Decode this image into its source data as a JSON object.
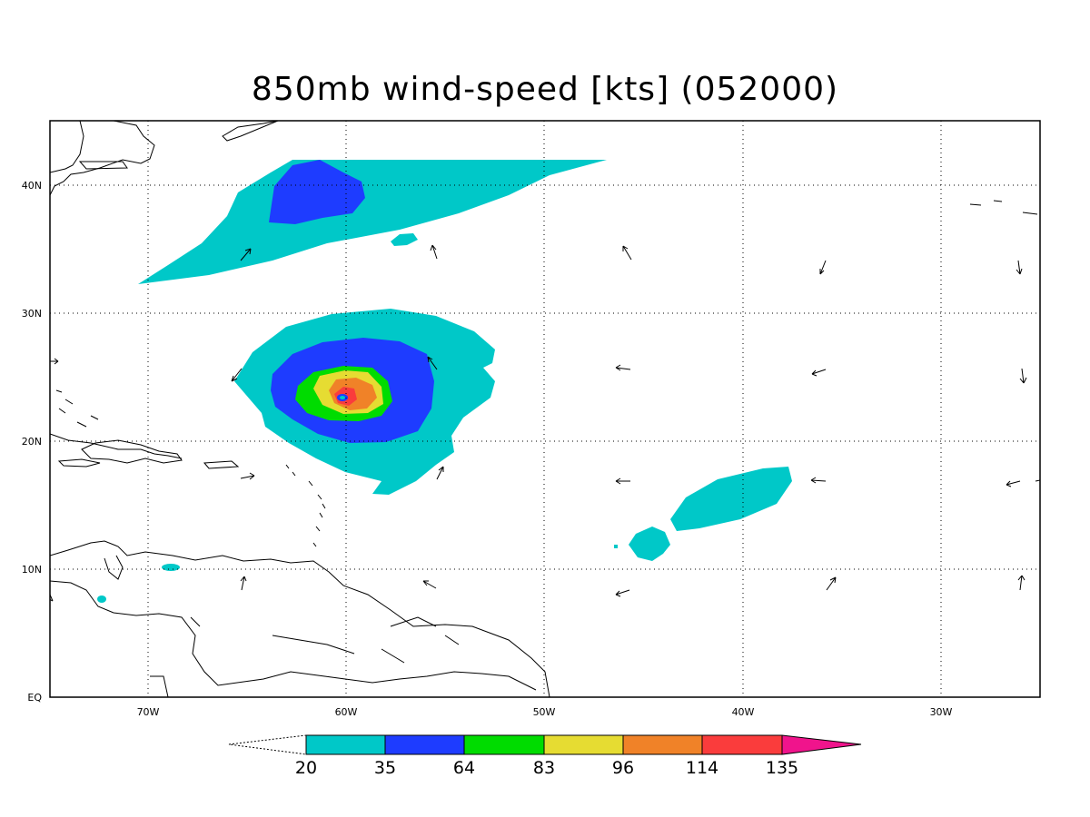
{
  "title": "850mb wind-speed [kts] (052000)",
  "axes": {
    "lon_labels": [
      "70W",
      "60W",
      "50W",
      "40W",
      "30W"
    ],
    "lat_labels": [
      "EQ",
      "10N",
      "20N",
      "30N",
      "40N"
    ]
  },
  "colorbar": {
    "levels": [
      "20",
      "35",
      "64",
      "83",
      "96",
      "114",
      "135"
    ],
    "colors": [
      "#00c8c8",
      "#1e3cff",
      "#00dc00",
      "#e6dc32",
      "#f08228",
      "#fa3c3c",
      "#f0148c"
    ]
  },
  "colors": {
    "c20": "#00c8c8",
    "c35": "#1e3cff",
    "c64": "#00dc00",
    "c83": "#e6dc32",
    "c96": "#f08228",
    "c114": "#fa3c3c",
    "c135": "#f0148c"
  }
}
